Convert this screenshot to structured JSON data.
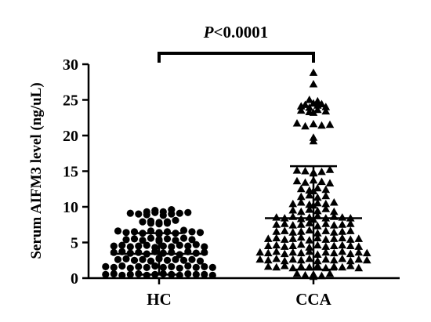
{
  "chart_data": {
    "type": "scatter",
    "subtype": "dot-plot",
    "title": "",
    "xlabel": "",
    "ylabel": "Serum AIFM3 level (ng/uL)",
    "ylim": [
      0,
      30
    ],
    "yticks": [
      0,
      5,
      10,
      15,
      20,
      25,
      30
    ],
    "ytick_labels": [
      "0",
      "5",
      "10",
      "15",
      "20",
      "25",
      "30"
    ],
    "grid": false,
    "legend": "none",
    "annotation": {
      "prefix": "P",
      "text": "<0.0001"
    },
    "categories": [
      "HC",
      "CCA"
    ],
    "series": [
      {
        "name": "HC",
        "marker": "circle",
        "summary": {
          "mean": 3.4,
          "sd_low": 0.5,
          "sd_high": 6.3
        },
        "values": [
          9.3,
          9.1,
          9.5,
          9.0,
          8.9,
          9.2,
          8.8,
          9.3,
          9.6,
          9.0,
          9.1,
          9.2,
          7.9,
          7.7,
          8.0,
          7.8,
          7.6,
          7.9,
          7.7,
          8.1,
          6.6,
          6.4,
          6.5,
          6.3,
          6.6,
          6.2,
          6.4,
          6.5,
          6.3,
          6.7,
          6.5,
          6.4,
          5.4,
          5.5,
          5.3,
          5.6,
          5.2,
          5.4,
          5.5,
          5.3,
          5.6,
          5.4,
          4.5,
          4.6,
          4.4,
          4.5,
          4.6,
          4.3,
          4.5,
          4.4,
          4.6,
          4.5,
          4.7,
          4.4,
          3.6,
          3.7,
          3.5,
          3.6,
          3.4,
          3.7,
          3.5,
          3.6,
          3.3,
          3.7,
          3.5,
          3.6,
          2.6,
          2.7,
          2.5,
          2.6,
          2.4,
          2.7,
          2.5,
          2.6,
          2.8,
          2.5,
          2.6,
          2.4,
          1.6,
          1.5,
          1.7,
          1.4,
          1.6,
          1.5,
          1.7,
          1.5,
          1.6,
          1.4,
          1.7,
          1.5,
          1.6,
          1.5,
          0.5,
          0.6,
          0.4,
          0.5,
          0.6,
          0.4,
          0.5,
          0.6,
          0.5,
          0.4,
          0.6,
          0.5,
          0.5,
          0.4
        ]
      },
      {
        "name": "CCA",
        "marker": "triangle",
        "summary": {
          "mean": 8.4,
          "sd_low": 1.2,
          "sd_high": 15.7
        },
        "values": [
          28.8,
          27.2,
          25.0,
          24.8,
          24.1,
          24.3,
          23.9,
          24.2,
          24.5,
          24.0,
          24.4,
          23.5,
          23.3,
          23.6,
          23.2,
          23.4,
          21.7,
          21.3,
          21.6,
          21.4,
          21.5,
          19.7,
          19.2,
          15.1,
          15.0,
          14.8,
          14.9,
          15.2,
          14.7,
          13.6,
          13.4,
          13.7,
          13.5,
          13.3,
          12.5,
          12.3,
          12.6,
          12.4,
          12.2,
          11.4,
          11.6,
          11.3,
          11.5,
          10.4,
          10.6,
          10.3,
          10.5,
          10.2,
          10.4,
          10.6,
          9.5,
          9.3,
          9.6,
          9.4,
          9.7,
          9.3,
          8.5,
          8.4,
          8.6,
          8.3,
          8.5,
          8.7,
          8.4,
          8.6,
          8.2,
          8.5,
          8.4,
          7.5,
          7.6,
          7.4,
          7.5,
          7.7,
          7.3,
          7.6,
          7.4,
          7.5,
          7.6,
          6.5,
          6.6,
          6.4,
          6.5,
          6.7,
          6.3,
          6.6,
          6.4,
          6.5,
          6.6,
          5.5,
          5.6,
          5.4,
          5.5,
          5.7,
          5.3,
          5.6,
          5.4,
          5.5,
          5.6,
          5.4,
          5.5,
          4.5,
          4.6,
          4.4,
          4.5,
          4.7,
          4.3,
          4.6,
          4.4,
          4.5,
          4.6,
          4.5,
          4.4,
          3.6,
          3.5,
          3.7,
          3.4,
          3.6,
          3.5,
          3.7,
          3.3,
          3.6,
          3.5,
          3.7,
          3.4,
          3.6,
          3.5,
          2.6,
          2.5,
          2.7,
          2.4,
          2.6,
          2.5,
          2.7,
          2.4,
          2.6,
          2.5,
          2.7,
          2.4,
          2.6,
          2.5,
          1.6,
          1.5,
          1.7,
          1.4,
          1.6,
          1.5,
          1.7,
          1.4,
          1.6,
          1.5,
          1.7,
          1.4,
          0.6,
          0.4,
          0.5,
          0.3,
          0.6,
          0.2
        ]
      }
    ]
  }
}
